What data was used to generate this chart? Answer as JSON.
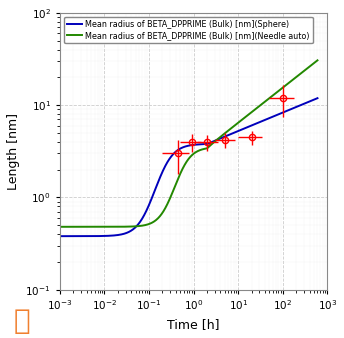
{
  "xlabel": "Time [h]",
  "ylabel": "Length [nm]",
  "xlim": [
    0.001,
    1000.0
  ],
  "ylim": [
    0.1,
    100
  ],
  "legend": [
    "Mean radius of BETA_DPPRIME (Bulk) [nm](Sphere)",
    "Mean radius of BETA_DPPRIME (Bulk) [nm](Needle auto)"
  ],
  "line_colors": [
    "#0000bb",
    "#228800"
  ],
  "grid_color": "#cccccc",
  "background_color": "#ffffff",
  "exp_points": {
    "x": [
      0.45,
      0.9,
      2.0,
      5.0,
      20.0,
      100.0
    ],
    "y": [
      3.0,
      4.0,
      4.0,
      4.2,
      4.5,
      12.0
    ],
    "xerr_lo": [
      0.25,
      0.4,
      0.8,
      2.0,
      10.0,
      50.0
    ],
    "xerr_hi": [
      0.35,
      0.6,
      1.5,
      3.5,
      15.0,
      80.0
    ],
    "yerr_lo": [
      1.2,
      0.9,
      0.8,
      0.8,
      0.8,
      4.5
    ],
    "yerr_hi": [
      1.2,
      0.9,
      0.8,
      0.8,
      0.8,
      4.5
    ]
  },
  "logo_color": "#f08030"
}
